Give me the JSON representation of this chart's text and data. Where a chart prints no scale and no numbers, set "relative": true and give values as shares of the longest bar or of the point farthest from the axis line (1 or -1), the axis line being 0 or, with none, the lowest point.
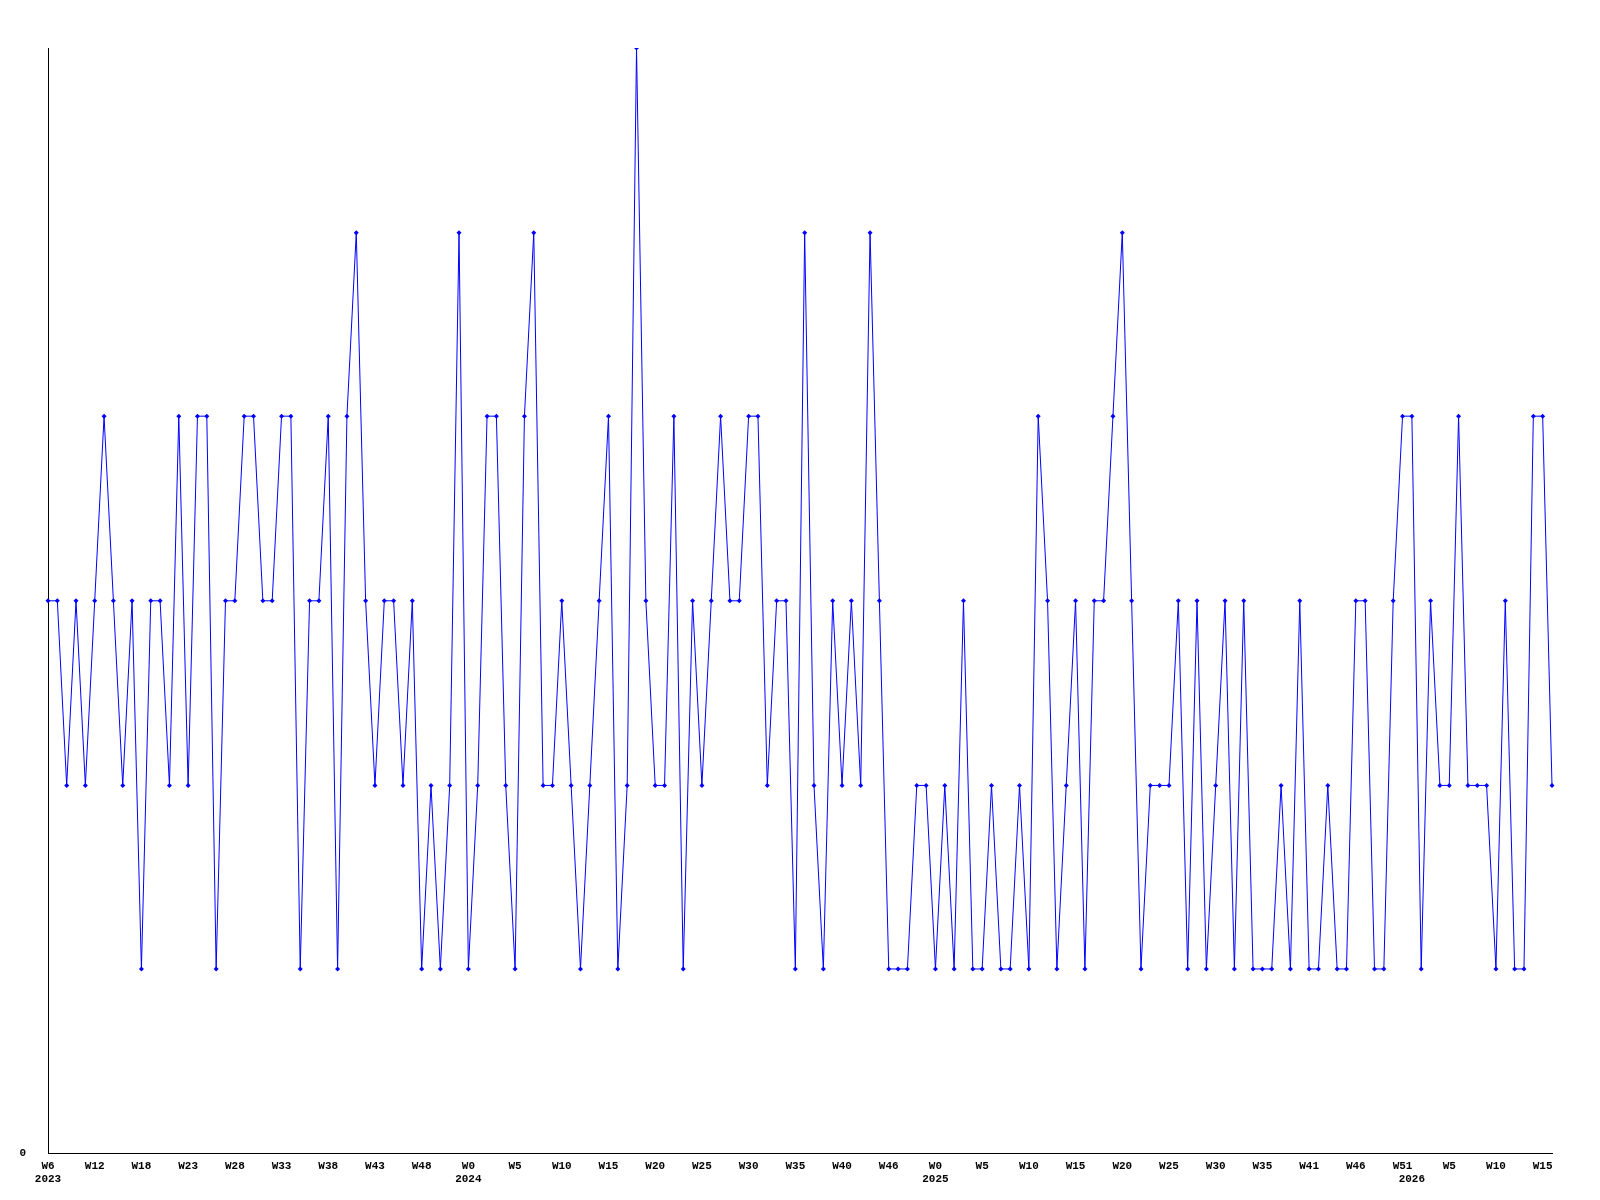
{
  "chart_data": {
    "type": "line",
    "relative": true,
    "color": "#0000ff",
    "marker": "diamond",
    "grid": false,
    "legend": false,
    "annotations": [
      "0"
    ],
    "categories": [
      "W6\n2023",
      null,
      null,
      null,
      null,
      "W12",
      null,
      null,
      null,
      null,
      "W18",
      null,
      null,
      null,
      null,
      "W23",
      null,
      null,
      null,
      null,
      "W28",
      null,
      null,
      null,
      null,
      "W33",
      null,
      null,
      null,
      null,
      "W38",
      null,
      null,
      null,
      null,
      "W43",
      null,
      null,
      null,
      null,
      "W48",
      null,
      null,
      null,
      null,
      "W0\n2024",
      null,
      null,
      null,
      null,
      "W5",
      null,
      null,
      null,
      null,
      "W10",
      null,
      null,
      null,
      null,
      "W15",
      null,
      null,
      null,
      null,
      "W20",
      null,
      null,
      null,
      null,
      "W25",
      null,
      null,
      null,
      null,
      "W30",
      null,
      null,
      null,
      null,
      "W35",
      null,
      null,
      null,
      null,
      "W40",
      null,
      null,
      null,
      null,
      "W46",
      null,
      null,
      null,
      null,
      "W0\n2025",
      null,
      null,
      null,
      null,
      "W5",
      null,
      null,
      null,
      null,
      "W10",
      null,
      null,
      null,
      null,
      "W15",
      null,
      null,
      null,
      null,
      "W20",
      null,
      null,
      null,
      null,
      "W25",
      null,
      null,
      null,
      null,
      "W30",
      null,
      null,
      null,
      null,
      "W35",
      null,
      null,
      null,
      null,
      "W41",
      null,
      null,
      null,
      null,
      "W46",
      null,
      null,
      null,
      null,
      "W51",
      "\n2026",
      null,
      null,
      null,
      "W5",
      null,
      null,
      null,
      null,
      "W10",
      null,
      null,
      null,
      null,
      "W15",
      null
    ],
    "values": [
      0.5,
      0.5,
      0.333,
      0.5,
      0.333,
      0.5,
      0.667,
      0.5,
      0.333,
      0.5,
      0.167,
      0.5,
      0.5,
      0.333,
      0.667,
      0.333,
      0.667,
      0.667,
      0.167,
      0.5,
      0.5,
      0.667,
      0.667,
      0.5,
      0.5,
      0.667,
      0.667,
      0.167,
      0.5,
      0.5,
      0.667,
      0.167,
      0.667,
      0.833,
      0.5,
      0.333,
      0.5,
      0.5,
      0.333,
      0.5,
      0.167,
      0.333,
      0.167,
      0.333,
      0.833,
      0.167,
      0.333,
      0.667,
      0.667,
      0.333,
      0.167,
      0.667,
      0.833,
      0.333,
      0.333,
      0.5,
      0.333,
      0.167,
      0.333,
      0.5,
      0.667,
      0.167,
      0.333,
      1,
      0.5,
      0.333,
      0.333,
      0.667,
      0.167,
      0.5,
      0.333,
      0.5,
      0.667,
      0.5,
      0.5,
      0.667,
      0.667,
      0.333,
      0.5,
      0.5,
      0.167,
      0.833,
      0.333,
      0.167,
      0.5,
      0.333,
      0.5,
      0.333,
      0.833,
      0.5,
      0.167,
      0.167,
      0.167,
      0.333,
      0.333,
      0.167,
      0.333,
      0.167,
      0.5,
      0.167,
      0.167,
      0.333,
      0.167,
      0.167,
      0.333,
      0.167,
      0.667,
      0.5,
      0.167,
      0.333,
      0.5,
      0.167,
      0.5,
      0.5,
      0.667,
      0.833,
      0.5,
      0.167,
      0.333,
      0.333,
      0.333,
      0.5,
      0.167,
      0.5,
      0.167,
      0.333,
      0.5,
      0.167,
      0.5,
      0.167,
      0.167,
      0.167,
      0.333,
      0.167,
      0.5,
      0.167,
      0.167,
      0.333,
      0.167,
      0.167,
      0.5,
      0.5,
      0.167,
      0.167,
      0.5,
      0.667,
      0.667,
      0.167,
      0.5,
      0.333,
      0.333,
      0.667,
      0.333,
      0.333,
      0.333,
      0.167,
      0.5,
      0.167,
      0.167,
      0.667,
      0.667,
      0.333
    ]
  }
}
